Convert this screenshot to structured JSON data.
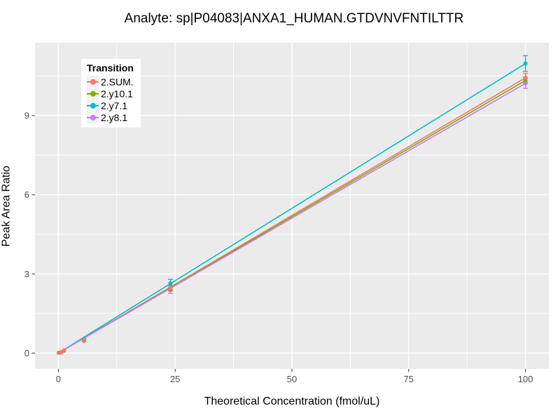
{
  "chart_data": {
    "type": "line",
    "title": "Analyte: sp|P04083|ANXA1_HUMAN.GTDVNVFNTILTTR",
    "xlabel": "Theoretical Concentration (fmol/uL)",
    "ylabel": "Peak Area Ratio",
    "legend_title": "Transition",
    "legend_position": "inside-top-left",
    "grid": true,
    "xlim": [
      -5,
      105
    ],
    "ylim": [
      -0.6,
      11.76
    ],
    "x_ticks": [
      0,
      25,
      50,
      75,
      100
    ],
    "y_ticks": [
      0,
      3,
      6,
      9
    ],
    "x_minor_ticks": [
      12.5,
      37.5,
      62.5,
      87.5
    ],
    "y_minor_ticks": [
      1.5,
      4.5,
      7.5,
      10.5
    ],
    "x": [
      0.1,
      0.6,
      1.2,
      5.5,
      24,
      100
    ],
    "series": [
      {
        "name": "2.SUM.",
        "color": "#F8766D",
        "values": [
          0.01,
          0.03,
          0.1,
          0.5,
          2.47,
          10.43
        ],
        "errors": [
          0.005,
          0.005,
          0.01,
          0.02,
          0.09,
          0.17
        ]
      },
      {
        "name": "2.y10.1",
        "color": "#7CAE00",
        "values": [
          0.01,
          0.03,
          0.09,
          0.47,
          2.42,
          10.33
        ],
        "errors": [
          0.005,
          0.005,
          0.01,
          0.02,
          0.07,
          0.12
        ]
      },
      {
        "name": "2.y7.1",
        "color": "#00BFC4",
        "values": [
          0.01,
          0.03,
          0.1,
          0.53,
          2.64,
          10.97
        ],
        "errors": [
          0.005,
          0.005,
          0.01,
          0.03,
          0.15,
          0.3
        ]
      },
      {
        "name": "2.y8.1",
        "color": "#C77CFF",
        "values": [
          0.01,
          0.03,
          0.09,
          0.46,
          2.38,
          10.22
        ],
        "errors": [
          0.005,
          0.005,
          0.01,
          0.02,
          0.12,
          0.19
        ]
      }
    ],
    "style": {
      "panel_background": "#EBEBEB",
      "grid_major_color": "#FFFFFF",
      "grid_minor_color": "#FFFFFF",
      "tick_color": "#333333",
      "tick_label_color": "#4D4D4D",
      "text_color": "#000000",
      "background": "#FFFFFF"
    }
  }
}
